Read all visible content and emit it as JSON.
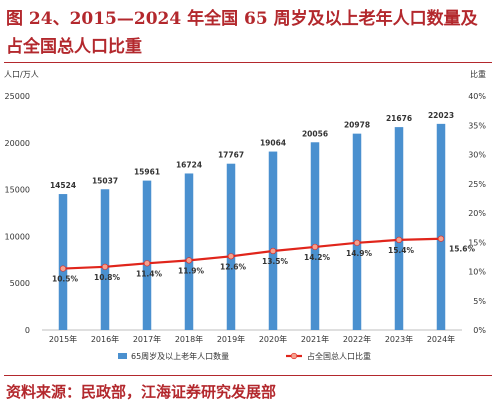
{
  "figure": {
    "title": "图 24、2015—2024 年全国 65 周岁及以上老年人口数量及占全国总人口比重",
    "source": "资料来源：民政部，江海证券研究发展部"
  },
  "colors": {
    "bar": "#4a90cf",
    "line": "#e0251b",
    "marker": "#f4a18f",
    "text": "#333333",
    "title": "#b3282d",
    "grid": "#e6e6e6"
  },
  "chart_data": {
    "type": "bar",
    "categories": [
      "2015年",
      "2016年",
      "2017年",
      "2018年",
      "2019年",
      "2020年",
      "2021年",
      "2022年",
      "2023年",
      "2024年"
    ],
    "series": [
      {
        "name": "65周岁及以上老年人口数量",
        "type": "bar",
        "axis": "left",
        "values": [
          14524,
          15037,
          15961,
          16724,
          17767,
          19064,
          20056,
          20978,
          21676,
          22023
        ],
        "labels": [
          "14524",
          "15037",
          "15961",
          "16724",
          "17767",
          "19064",
          "20056",
          "20978",
          "21676",
          "22023"
        ]
      },
      {
        "name": "占全国总人口比重",
        "type": "line",
        "axis": "right",
        "values": [
          10.5,
          10.8,
          11.4,
          11.9,
          12.6,
          13.5,
          14.2,
          14.9,
          15.4,
          15.6
        ],
        "labels": [
          "10.5%",
          "10.8%",
          "11.4%",
          "11.9%",
          "12.6%",
          "13.5%",
          "14.2%",
          "14.9%",
          "15.4%",
          "15.6%"
        ]
      }
    ],
    "y_left": {
      "label": "人口/万人",
      "min": 0,
      "max": 25000,
      "step": 5000,
      "ticks": [
        "0",
        "5000",
        "10000",
        "15000",
        "20000",
        "25000"
      ]
    },
    "y_right": {
      "label": "比重",
      "min": 0,
      "max": 40,
      "step": 5,
      "ticks": [
        "0%",
        "5%",
        "10%",
        "15%",
        "20%",
        "25%",
        "30%",
        "35%",
        "40%"
      ]
    },
    "grid": false,
    "legend": "bottom"
  }
}
